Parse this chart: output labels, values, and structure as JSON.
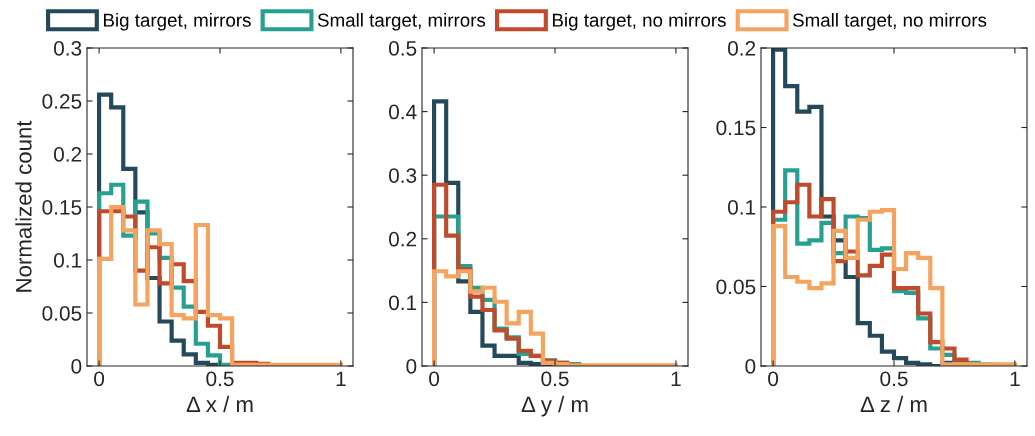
{
  "chart_data": [
    {
      "type": "histogram",
      "ylabel": "Normalized count",
      "xlabel": "Δ x / m",
      "legend": "top",
      "bins": [
        0,
        0.05,
        0.1,
        0.15,
        0.2,
        0.25,
        0.3,
        0.35,
        0.4,
        0.45,
        0.5,
        0.55,
        0.6,
        0.65,
        0.7,
        0.75,
        0.8,
        0.85,
        0.9,
        0.95,
        1
      ],
      "xlim": [
        -0.05,
        1.05
      ],
      "xticks": [
        0,
        0.5,
        1
      ],
      "ylim": [
        0,
        0.3
      ],
      "yticks": [
        0,
        0.05,
        0.1,
        0.15,
        0.2,
        0.25,
        0.3
      ],
      "series": [
        {
          "name": "Big target, mirrors",
          "color": "#23495a",
          "values": [
            0.256,
            0.244,
            0.186,
            0.145,
            0.083,
            0.042,
            0.024,
            0.011,
            0.003,
            0.001,
            0,
            0,
            0,
            0,
            0,
            0,
            0,
            0,
            0,
            0
          ]
        },
        {
          "name": "Small target, mirrors",
          "color": "#26a191",
          "values": [
            0.163,
            0.171,
            0.123,
            0.155,
            0.125,
            0.102,
            0.074,
            0.056,
            0.021,
            0.01,
            0.001,
            0,
            0,
            0,
            0,
            0,
            0,
            0,
            0,
            0
          ]
        },
        {
          "name": "Big target, no mirrors",
          "color": "#c04a2c",
          "values": [
            0.146,
            0.146,
            0.141,
            0.09,
            0.112,
            0.078,
            0.096,
            0.08,
            0.051,
            0.038,
            0.018,
            0.003,
            0.003,
            0.002,
            0,
            0,
            0,
            0,
            0,
            0
          ]
        },
        {
          "name": "Small target, no mirrors",
          "color": "#f5a45f",
          "values": [
            0.101,
            0.15,
            0.128,
            0.058,
            0.128,
            0.115,
            0.048,
            0.045,
            0.133,
            0.048,
            0.045,
            0.001,
            0.001,
            0.001,
            0.001,
            0.001,
            0.001,
            0.001,
            0.001,
            0.001
          ]
        }
      ]
    },
    {
      "type": "histogram",
      "xlabel": "Δ y / m",
      "bins": [
        0,
        0.05,
        0.1,
        0.15,
        0.2,
        0.25,
        0.3,
        0.35,
        0.4,
        0.45,
        0.5,
        0.55,
        0.6,
        0.65,
        0.7,
        0.75,
        0.8,
        0.85,
        0.9,
        0.95,
        1
      ],
      "xlim": [
        -0.05,
        1.05
      ],
      "xticks": [
        0,
        0.5,
        1
      ],
      "ylim": [
        0,
        0.5
      ],
      "yticks": [
        0,
        0.1,
        0.2,
        0.3,
        0.4,
        0.5
      ],
      "series": [
        {
          "color": "#23495a",
          "values": [
            0.416,
            0.288,
            0.133,
            0.085,
            0.032,
            0.016,
            0.016,
            0.005,
            0.003,
            0.001,
            0,
            0,
            0,
            0,
            0,
            0,
            0,
            0,
            0,
            0
          ]
        },
        {
          "color": "#26a191",
          "values": [
            0.235,
            0.235,
            0.157,
            0.123,
            0.104,
            0.059,
            0.045,
            0.019,
            0.016,
            0.009,
            0.005,
            0.003,
            0,
            0,
            0,
            0,
            0,
            0,
            0,
            0
          ]
        },
        {
          "color": "#c04a2c",
          "values": [
            0.285,
            0.205,
            0.152,
            0.109,
            0.088,
            0.056,
            0.043,
            0.024,
            0.016,
            0.008,
            0.005,
            0.001,
            0,
            0,
            0,
            0,
            0,
            0,
            0,
            0
          ]
        },
        {
          "color": "#f5a45f",
          "values": [
            0.149,
            0.141,
            0.149,
            0.117,
            0.123,
            0.101,
            0.067,
            0.085,
            0.051,
            0.005,
            0.003,
            0.001,
            0.001,
            0.001,
            0.001,
            0.001,
            0.001,
            0.001,
            0.001,
            0.001
          ]
        }
      ]
    },
    {
      "type": "histogram",
      "xlabel": "Δ z / m",
      "bins": [
        0,
        0.05,
        0.1,
        0.15,
        0.2,
        0.25,
        0.3,
        0.35,
        0.4,
        0.45,
        0.5,
        0.55,
        0.6,
        0.65,
        0.7,
        0.75,
        0.8,
        0.85,
        0.9,
        0.95,
        1
      ],
      "xlim": [
        -0.05,
        1.05
      ],
      "xticks": [
        0,
        0.5,
        1
      ],
      "ylim": [
        0,
        0.2
      ],
      "yticks": [
        0,
        0.05,
        0.1,
        0.15,
        0.2
      ],
      "series": [
        {
          "color": "#23495a",
          "values": [
            0.199,
            0.176,
            0.16,
            0.163,
            0.094,
            0.079,
            0.056,
            0.027,
            0.019,
            0.009,
            0.005,
            0.002,
            0.001,
            0,
            0.002,
            0,
            0,
            0,
            0,
            0
          ]
        },
        {
          "color": "#26a191",
          "values": [
            0.092,
            0.123,
            0.077,
            0.079,
            0.09,
            0.071,
            0.094,
            0.093,
            0.073,
            0.074,
            0.047,
            0.046,
            0.03,
            0.011,
            0.007,
            0.002,
            0.002,
            0.001,
            0,
            0
          ]
        },
        {
          "color": "#c04a2c",
          "values": [
            0.097,
            0.103,
            0.114,
            0.094,
            0.105,
            0.066,
            0.072,
            0.057,
            0.063,
            0.07,
            0.049,
            0.049,
            0.033,
            0.015,
            0.011,
            0.004,
            0.001,
            0,
            0,
            0
          ]
        },
        {
          "color": "#f5a45f",
          "values": [
            0.088,
            0.056,
            0.053,
            0.049,
            0.052,
            0.085,
            0.068,
            0.092,
            0.097,
            0.098,
            0.061,
            0.071,
            0.068,
            0.049,
            0.001,
            0.001,
            0.001,
            0.001,
            0.001,
            0.001
          ]
        }
      ]
    }
  ]
}
